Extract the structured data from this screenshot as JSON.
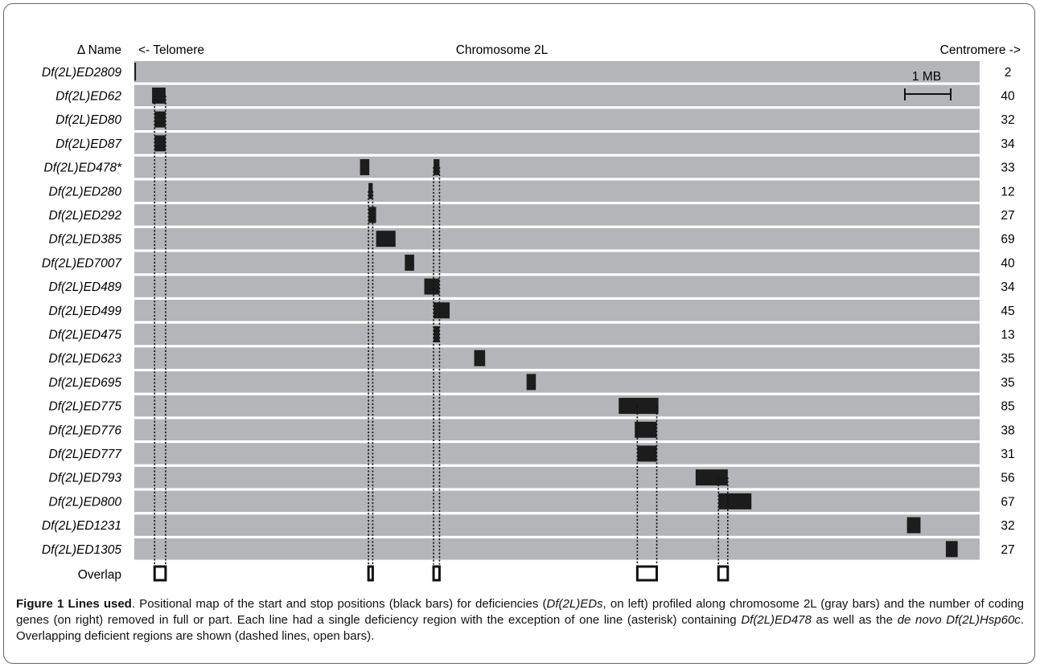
{
  "header": {
    "name_col": "Δ Name",
    "left_label": "<- Telomere",
    "center_label": "Chromosome 2L",
    "right_label": "Centromere ->"
  },
  "scale_bar": {
    "label": "1 MB"
  },
  "overlap_label": "Overlap",
  "colors": {
    "chromosome": "#b4b5b8",
    "deficiency": "#1c1c1c",
    "overlap_box": "#111111"
  },
  "chart_data": {
    "type": "gantt",
    "axis": "relative position along chromosome 2L (0 = telomere end, 1 = centromere end)",
    "rows": [
      {
        "name": "Df(2L)ED2809",
        "genes": 2,
        "segments": [
          [
            0.0,
            0.002
          ]
        ]
      },
      {
        "name": "Df(2L)ED62",
        "genes": 40,
        "segments": [
          [
            0.021,
            0.037
          ]
        ]
      },
      {
        "name": "Df(2L)ED80",
        "genes": 32,
        "segments": [
          [
            0.024,
            0.037
          ]
        ]
      },
      {
        "name": "Df(2L)ED87",
        "genes": 34,
        "segments": [
          [
            0.024,
            0.037
          ]
        ]
      },
      {
        "name": "Df(2L)ED478*",
        "genes": 33,
        "segments": [
          [
            0.267,
            0.278
          ],
          [
            0.354,
            0.361
          ]
        ]
      },
      {
        "name": "Df(2L)ED280",
        "genes": 12,
        "segments": [
          [
            0.277,
            0.282
          ]
        ]
      },
      {
        "name": "Df(2L)ED292",
        "genes": 27,
        "segments": [
          [
            0.277,
            0.286
          ]
        ]
      },
      {
        "name": "Df(2L)ED385",
        "genes": 69,
        "segments": [
          [
            0.286,
            0.309
          ]
        ]
      },
      {
        "name": "Df(2L)ED7007",
        "genes": 40,
        "segments": [
          [
            0.32,
            0.331
          ]
        ]
      },
      {
        "name": "Df(2L)ED489",
        "genes": 34,
        "segments": [
          [
            0.343,
            0.361
          ]
        ]
      },
      {
        "name": "Df(2L)ED499",
        "genes": 45,
        "segments": [
          [
            0.354,
            0.373
          ]
        ]
      },
      {
        "name": "Df(2L)ED475",
        "genes": 13,
        "segments": [
          [
            0.354,
            0.361
          ]
        ]
      },
      {
        "name": "Df(2L)ED623",
        "genes": 35,
        "segments": [
          [
            0.402,
            0.415
          ]
        ]
      },
      {
        "name": "Df(2L)ED695",
        "genes": 35,
        "segments": [
          [
            0.464,
            0.475
          ]
        ]
      },
      {
        "name": "Df(2L)ED775",
        "genes": 85,
        "segments": [
          [
            0.573,
            0.62
          ]
        ]
      },
      {
        "name": "Df(2L)ED776",
        "genes": 38,
        "segments": [
          [
            0.592,
            0.618
          ]
        ]
      },
      {
        "name": "Df(2L)ED777",
        "genes": 31,
        "segments": [
          [
            0.595,
            0.618
          ]
        ]
      },
      {
        "name": "Df(2L)ED793",
        "genes": 56,
        "segments": [
          [
            0.664,
            0.702
          ]
        ]
      },
      {
        "name": "Df(2L)ED800",
        "genes": 67,
        "segments": [
          [
            0.691,
            0.73
          ]
        ]
      },
      {
        "name": "Df(2L)ED1231",
        "genes": 32,
        "segments": [
          [
            0.914,
            0.93
          ]
        ]
      },
      {
        "name": "Df(2L)ED1305",
        "genes": 27,
        "segments": [
          [
            0.96,
            0.974
          ]
        ]
      }
    ],
    "overlaps": [
      {
        "start": 0.024,
        "end": 0.037,
        "rows": [
          1,
          20
        ]
      },
      {
        "start": 0.277,
        "end": 0.282,
        "rows": [
          5,
          20
        ]
      },
      {
        "start": 0.354,
        "end": 0.361,
        "rows": [
          4,
          20
        ]
      },
      {
        "start": 0.595,
        "end": 0.618,
        "rows": [
          14,
          20
        ]
      },
      {
        "start": 0.691,
        "end": 0.702,
        "rows": [
          17,
          20
        ]
      }
    ]
  },
  "caption": {
    "title": "Figure 1 Lines used",
    "t1": ". Positional map of the start and stop positions (black bars) for deficiencies (",
    "i1": "Df(2L)EDs",
    "t2": ", on left) profiled along chromosome 2L (gray bars) and the number of coding genes (on right) removed in full or part. Each line had a single deficiency region with the exception of one line (asterisk) containing ",
    "i2": "Df(2L)ED478",
    "t3": " as well as the ",
    "i3": "de novo Df(2L)Hsp60c",
    "t4": ". Overlapping deficient regions are shown (dashed lines, open bars)."
  }
}
